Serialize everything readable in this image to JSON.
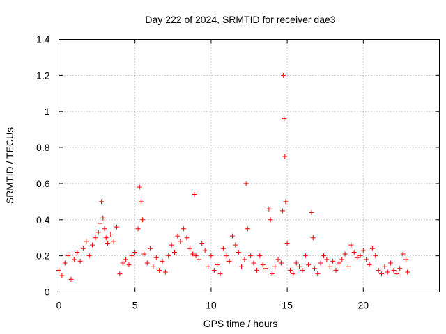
{
  "chart_data": {
    "type": "scatter",
    "title": "Day 222 of 2024, SRMTID for receiver dae3",
    "xlabel": "GPS time / hours",
    "ylabel": "SRMTID / TECUs",
    "xlim": [
      0,
      25
    ],
    "ylim": [
      0,
      1.4
    ],
    "x_ticks": [
      0,
      5,
      10,
      15,
      20
    ],
    "x_tick_labels": [
      "0",
      "5",
      "10",
      "15",
      "20"
    ],
    "y_ticks": [
      0,
      0.2,
      0.4,
      0.6,
      0.8,
      1,
      1.2,
      1.4
    ],
    "y_tick_labels": [
      "0",
      "0.2",
      "0.4",
      "0.6",
      "0.8",
      "1",
      "1.2",
      "1.4"
    ],
    "grid": true,
    "marker": "plus",
    "color": "#ff0000",
    "series": [
      {
        "name": "dae3",
        "x": [
          0.0,
          0.2,
          0.4,
          0.6,
          0.8,
          1.0,
          1.2,
          1.4,
          1.6,
          1.8,
          2.0,
          2.2,
          2.4,
          2.6,
          2.7,
          2.8,
          2.9,
          3.0,
          3.1,
          3.2,
          3.4,
          3.6,
          3.8,
          4.0,
          4.2,
          4.4,
          4.6,
          4.8,
          5.0,
          5.2,
          5.3,
          5.4,
          5.5,
          5.6,
          5.8,
          6.0,
          6.2,
          6.4,
          6.6,
          6.8,
          7.0,
          7.2,
          7.4,
          7.6,
          7.8,
          8.0,
          8.2,
          8.4,
          8.6,
          8.8,
          8.9,
          9.0,
          9.2,
          9.4,
          9.6,
          9.8,
          10.0,
          10.2,
          10.4,
          10.6,
          10.8,
          11.0,
          11.2,
          11.4,
          11.6,
          11.8,
          12.0,
          12.2,
          12.3,
          12.4,
          12.6,
          12.8,
          13.0,
          13.2,
          13.4,
          13.6,
          13.8,
          13.9,
          14.0,
          14.2,
          14.4,
          14.6,
          14.7,
          14.75,
          14.8,
          14.85,
          14.9,
          15.0,
          15.2,
          15.4,
          15.6,
          15.8,
          16.0,
          16.2,
          16.4,
          16.6,
          16.7,
          16.8,
          17.0,
          17.2,
          17.4,
          17.6,
          17.8,
          18.0,
          18.2,
          18.4,
          18.6,
          18.8,
          19.0,
          19.2,
          19.4,
          19.6,
          19.8,
          20.0,
          20.2,
          20.4,
          20.6,
          20.8,
          21.0,
          21.2,
          21.4,
          21.6,
          21.8,
          22.0,
          22.2,
          22.4,
          22.6,
          22.8,
          22.9
        ],
        "y": [
          0.12,
          0.09,
          0.16,
          0.2,
          0.07,
          0.18,
          0.22,
          0.17,
          0.24,
          0.28,
          0.2,
          0.26,
          0.3,
          0.33,
          0.38,
          0.5,
          0.41,
          0.35,
          0.3,
          0.27,
          0.32,
          0.28,
          0.36,
          0.1,
          0.16,
          0.18,
          0.15,
          0.2,
          0.22,
          0.35,
          0.58,
          0.5,
          0.4,
          0.21,
          0.16,
          0.24,
          0.14,
          0.19,
          0.12,
          0.17,
          0.11,
          0.2,
          0.26,
          0.22,
          0.31,
          0.28,
          0.35,
          0.3,
          0.24,
          0.21,
          0.54,
          0.2,
          0.18,
          0.27,
          0.23,
          0.14,
          0.2,
          0.12,
          0.15,
          0.1,
          0.24,
          0.2,
          0.17,
          0.31,
          0.26,
          0.22,
          0.14,
          0.18,
          0.6,
          0.35,
          0.2,
          0.16,
          0.12,
          0.2,
          0.15,
          0.13,
          0.46,
          0.4,
          0.1,
          0.14,
          0.18,
          0.16,
          0.45,
          1.2,
          0.96,
          0.75,
          0.5,
          0.27,
          0.12,
          0.1,
          0.16,
          0.14,
          0.12,
          0.2,
          0.15,
          0.44,
          0.3,
          0.13,
          0.1,
          0.16,
          0.2,
          0.18,
          0.14,
          0.17,
          0.12,
          0.16,
          0.18,
          0.21,
          0.14,
          0.26,
          0.22,
          0.19,
          0.2,
          0.23,
          0.18,
          0.15,
          0.24,
          0.2,
          0.12,
          0.1,
          0.14,
          0.11,
          0.16,
          0.12,
          0.1,
          0.13,
          0.21,
          0.18,
          0.11
        ]
      }
    ]
  }
}
